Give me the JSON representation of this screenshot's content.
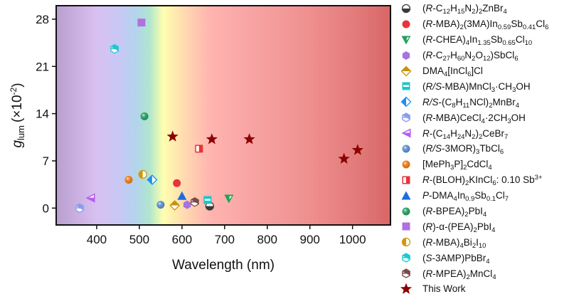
{
  "chart_data": {
    "type": "scatter",
    "title": "",
    "xlabel": "Wavelength (nm)",
    "ylabel_main": "g",
    "ylabel_sub": "lum",
    "ylabel_unit": "(×10",
    "ylabel_exp": "-2",
    "ylabel_close": ")",
    "xlim": [
      305,
      1089
    ],
    "ylim": [
      -2.5,
      30
    ],
    "xticks": [
      400,
      500,
      600,
      700,
      800,
      900,
      1000
    ],
    "yticks": [
      0,
      7,
      14,
      21,
      28
    ],
    "grid": false,
    "background": "visible-spectrum gradient (violet to red)",
    "legend_position": "right",
    "series": [
      {
        "name": "(R-C12H15N2)2ZnBr4",
        "marker": "circle-half-bottom",
        "color": "#3a3a3a",
        "points": [
          [
            665,
            0.3
          ]
        ]
      },
      {
        "name": "(R-MBA)2(3MA)In0.59Sb0.41Cl6",
        "marker": "circle",
        "color": "#e8333a",
        "points": [
          [
            588,
            3.7
          ]
        ]
      },
      {
        "name": "(R-CHEA)4In1.35Sb0.65Cl10",
        "marker": "triangle-down-half",
        "color": "#22a05a",
        "points": [
          [
            710,
            1.4
          ]
        ]
      },
      {
        "name": "(R-C27H60N2O12)SbCl6",
        "marker": "hexagon",
        "color": "#a673e0",
        "points": [
          [
            612,
            0.5
          ]
        ]
      },
      {
        "name": "DMA4[InCl6]Cl",
        "marker": "diamond-half-top",
        "color": "#c8920e",
        "points": [
          [
            583,
            0.4
          ]
        ]
      },
      {
        "name": "(R/S-MBA)MnCl3·CH3OH",
        "marker": "square-half-bottom",
        "color": "#1fc5c8",
        "points": [
          [
            660,
            1.2
          ]
        ]
      },
      {
        "name": "R/S-(C8H11NCl)2MnBr4",
        "marker": "diamond-half-left",
        "color": "#1e8ff0",
        "points": [
          [
            530,
            4.2
          ]
        ]
      },
      {
        "name": "(R-MBA)CeCl4·2CH3OH",
        "marker": "hexagon-half-top",
        "color": "#8a9cf0",
        "points": [
          [
            360,
            0.0
          ]
        ]
      },
      {
        "name": "R-(C14H24N2)2CeBr7",
        "marker": "triangle-left-half",
        "color": "#b65df0",
        "points": [
          [
            385,
            1.5
          ]
        ]
      },
      {
        "name": "(R/S-3MOR)3TbCl6",
        "marker": "sphere",
        "color": "#5a8fd0",
        "points": [
          [
            550,
            0.5
          ]
        ]
      },
      {
        "name": "[MePh3P]2CdCl4",
        "marker": "sphere",
        "color": "#f07a10",
        "points": [
          [
            475,
            4.2
          ]
        ]
      },
      {
        "name": "R-(BLOH)2KInCl6: 0.10 Sb3+",
        "marker": "square-half-left",
        "color": "#e8333a",
        "points": [
          [
            640,
            8.8
          ]
        ]
      },
      {
        "name": "P-DMA4In0.9Sb0.1Cl7",
        "marker": "triangle-up",
        "color": "#1a6ee0",
        "points": [
          [
            600,
            1.8
          ]
        ]
      },
      {
        "name": "(R-BPEA)2PbI4",
        "marker": "sphere",
        "color": "#22a060",
        "points": [
          [
            512,
            13.6
          ]
        ]
      },
      {
        "name": "(R)-α-(PEA)2PbI4",
        "marker": "square",
        "color": "#b070e0",
        "points": [
          [
            505,
            27.5
          ]
        ]
      },
      {
        "name": "(R-MBA)4Bi2I10",
        "marker": "circle-half-left",
        "color": "#d0980e",
        "points": [
          [
            508,
            5.0
          ]
        ]
      },
      {
        "name": "(S-3AMP)PbBr4",
        "marker": "hexagon-half-top",
        "color": "#1ec8d0",
        "points": [
          [
            442,
            23.6
          ]
        ]
      },
      {
        "name": "(R-MPEA)2MnCl4",
        "marker": "hexagon-half-top",
        "color": "#7a4a4a",
        "points": [
          [
            630,
            0.9
          ]
        ]
      },
      {
        "name": "This Work",
        "marker": "star",
        "color": "#8b0000",
        "points": [
          [
            578,
            10.6
          ],
          [
            670,
            10.2
          ],
          [
            758,
            10.2
          ],
          [
            980,
            7.3
          ],
          [
            1012,
            8.6
          ]
        ]
      }
    ]
  },
  "legend": [
    {
      "label_html_parts": [
        [
          "",
          "("
        ],
        [
          "i",
          "R"
        ],
        [
          "",
          "-C"
        ],
        [
          "sub",
          "12"
        ],
        [
          "",
          "H"
        ],
        [
          "sub",
          "15"
        ],
        [
          "",
          "N"
        ],
        [
          "sub",
          "2"
        ],
        [
          "",
          ")"
        ],
        [
          "sub",
          "2"
        ],
        [
          "",
          "ZnBr"
        ],
        [
          "sub",
          "4"
        ]
      ]
    },
    {
      "label_html_parts": [
        [
          "",
          "("
        ],
        [
          "i",
          "R"
        ],
        [
          "",
          "-MBA)"
        ],
        [
          "sub",
          "2"
        ],
        [
          "",
          "(3MA)In"
        ],
        [
          "sub",
          "0.59"
        ],
        [
          "",
          "Sb"
        ],
        [
          "sub",
          "0.41"
        ],
        [
          "",
          "Cl"
        ],
        [
          "sub",
          "6"
        ]
      ]
    },
    {
      "label_html_parts": [
        [
          "",
          "("
        ],
        [
          "i",
          "R"
        ],
        [
          "",
          "-CHEA)"
        ],
        [
          "sub",
          "4"
        ],
        [
          "",
          "In"
        ],
        [
          "sub",
          "1.35"
        ],
        [
          "",
          "Sb"
        ],
        [
          "sub",
          "0.65"
        ],
        [
          "",
          "Cl"
        ],
        [
          "sub",
          "10"
        ]
      ]
    },
    {
      "label_html_parts": [
        [
          "",
          "("
        ],
        [
          "i",
          "R"
        ],
        [
          "",
          "-C"
        ],
        [
          "sub",
          "27"
        ],
        [
          "",
          "H"
        ],
        [
          "sub",
          "60"
        ],
        [
          "",
          "N"
        ],
        [
          "sub",
          "2"
        ],
        [
          "",
          "O"
        ],
        [
          "sub",
          "12"
        ],
        [
          "",
          ")SbCl"
        ],
        [
          "sub",
          "6"
        ]
      ]
    },
    {
      "label_html_parts": [
        [
          "",
          "DMA"
        ],
        [
          "sub",
          "4"
        ],
        [
          "",
          "[InCl"
        ],
        [
          "sub",
          "6"
        ],
        [
          "",
          "]Cl"
        ]
      ]
    },
    {
      "label_html_parts": [
        [
          "",
          "("
        ],
        [
          "i",
          "R/S"
        ],
        [
          "",
          "-MBA)MnCl"
        ],
        [
          "sub",
          "3"
        ],
        [
          "",
          "·CH"
        ],
        [
          "sub",
          "3"
        ],
        [
          "",
          "OH"
        ]
      ]
    },
    {
      "label_html_parts": [
        [
          "i",
          "R/S"
        ],
        [
          "",
          "-(C"
        ],
        [
          "sub",
          "8"
        ],
        [
          "",
          "H"
        ],
        [
          "sub",
          "11"
        ],
        [
          "",
          "NCl)"
        ],
        [
          "sub",
          "2"
        ],
        [
          "",
          "MnBr"
        ],
        [
          "sub",
          "4"
        ]
      ]
    },
    {
      "label_html_parts": [
        [
          "",
          "("
        ],
        [
          "i",
          "R"
        ],
        [
          "",
          "-MBA)CeCl"
        ],
        [
          "sub",
          "4"
        ],
        [
          "",
          "·2CH"
        ],
        [
          "sub",
          "3"
        ],
        [
          "",
          "OH"
        ]
      ]
    },
    {
      "label_html_parts": [
        [
          "i",
          "R"
        ],
        [
          "",
          "-(C"
        ],
        [
          "sub",
          "14"
        ],
        [
          "",
          "H"
        ],
        [
          "sub",
          "24"
        ],
        [
          "",
          "N"
        ],
        [
          "sub",
          "2"
        ],
        [
          "",
          ")"
        ],
        [
          "sub",
          "2"
        ],
        [
          "",
          "CeBr"
        ],
        [
          "sub",
          "7"
        ]
      ]
    },
    {
      "label_html_parts": [
        [
          "",
          "("
        ],
        [
          "i",
          "R/S"
        ],
        [
          "",
          "-3MOR)"
        ],
        [
          "sub",
          "3"
        ],
        [
          "",
          "TbCl"
        ],
        [
          "sub",
          "6"
        ]
      ]
    },
    {
      "label_html_parts": [
        [
          "",
          "[MePh"
        ],
        [
          "sub",
          "3"
        ],
        [
          "",
          "P]"
        ],
        [
          "sub",
          "2"
        ],
        [
          "",
          "CdCl"
        ],
        [
          "sub",
          "4"
        ]
      ]
    },
    {
      "label_html_parts": [
        [
          "i",
          "R"
        ],
        [
          "",
          "-(BLOH)"
        ],
        [
          "sub",
          "2"
        ],
        [
          "",
          "KInCl"
        ],
        [
          "sub",
          "6"
        ],
        [
          "",
          ": 0.10 Sb"
        ],
        [
          "sup",
          "3+"
        ]
      ]
    },
    {
      "label_html_parts": [
        [
          "i",
          "P"
        ],
        [
          "",
          "-DMA"
        ],
        [
          "sub",
          "4"
        ],
        [
          "",
          "In"
        ],
        [
          "sub",
          "0.9"
        ],
        [
          "",
          "Sb"
        ],
        [
          "sub",
          "0.1"
        ],
        [
          "",
          "Cl"
        ],
        [
          "sub",
          "7"
        ]
      ]
    },
    {
      "label_html_parts": [
        [
          "",
          "("
        ],
        [
          "i",
          "R"
        ],
        [
          "",
          "-BPEA)"
        ],
        [
          "sub",
          "2"
        ],
        [
          "",
          "PbI"
        ],
        [
          "sub",
          "4"
        ]
      ]
    },
    {
      "label_html_parts": [
        [
          "",
          "("
        ],
        [
          "i",
          "R"
        ],
        [
          "",
          ")-α-(PEA)"
        ],
        [
          "sub",
          "2"
        ],
        [
          "",
          "PbI"
        ],
        [
          "sub",
          "4"
        ]
      ]
    },
    {
      "label_html_parts": [
        [
          "",
          "("
        ],
        [
          "i",
          "R"
        ],
        [
          "",
          "-MBA)"
        ],
        [
          "sub",
          "4"
        ],
        [
          "",
          "Bi"
        ],
        [
          "sub",
          "2"
        ],
        [
          "",
          "I"
        ],
        [
          "sub",
          "10"
        ]
      ]
    },
    {
      "label_html_parts": [
        [
          "",
          "("
        ],
        [
          "i",
          "S"
        ],
        [
          "",
          "-3AMP)PbBr"
        ],
        [
          "sub",
          "4"
        ]
      ]
    },
    {
      "label_html_parts": [
        [
          "",
          "("
        ],
        [
          "i",
          "R"
        ],
        [
          "",
          "-MPEA)"
        ],
        [
          "sub",
          "2"
        ],
        [
          "",
          "MnCl"
        ],
        [
          "sub",
          "4"
        ]
      ]
    },
    {
      "label_html_parts": [
        [
          "",
          "This Work"
        ]
      ]
    }
  ]
}
